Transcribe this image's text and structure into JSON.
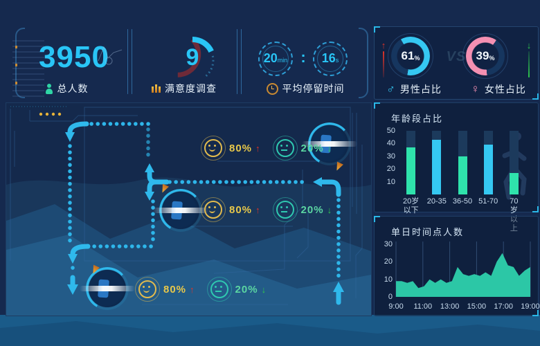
{
  "colors": {
    "accent_cyan": "#29C5F6",
    "bar_green": "#2FE3AC",
    "bar_blue": "#35C8F2",
    "area_fill": "#2CC7A6",
    "male_blue": "#35C8F2",
    "female_pink": "#F490B2",
    "up_red": "#E03428",
    "down_green": "#2FC84E",
    "gold": "#E8B339"
  },
  "kpi": {
    "total": {
      "value": "3950",
      "label": "总人数"
    },
    "satisfaction": {
      "value": "9",
      "label": "满意度调查"
    },
    "duration": {
      "minutes": "20",
      "min_unit": "min",
      "separator": ":",
      "seconds": "16",
      "sec_unit": "s",
      "label": "平均停留时间"
    },
    "gender": {
      "male_value": "61",
      "male_unit": "%",
      "male_icon": "♂",
      "male_label": "男性占比",
      "male_trend": "↑",
      "vs": "VS",
      "female_value": "39",
      "female_unit": "%",
      "female_icon": "♀",
      "female_label": "女性占比",
      "female_trend": "↓"
    }
  },
  "flow": {
    "rows": [
      {
        "happy_value": "80%",
        "happy_trend": "↑",
        "neutral_value": "20%",
        "neutral_trend": "↓"
      },
      {
        "happy_value": "80%",
        "happy_trend": "↑",
        "neutral_value": "20%",
        "neutral_trend": "↓"
      },
      {
        "happy_value": "80%",
        "happy_trend": "↑",
        "neutral_value": "20%",
        "neutral_trend": "↓"
      }
    ]
  },
  "chart_data": [
    {
      "type": "bar",
      "title": "年龄段占比",
      "categories": [
        "20岁\n以下",
        "20-35",
        "36-50",
        "51-70",
        "70岁\n以上"
      ],
      "values": [
        37,
        43,
        30,
        39,
        17
      ],
      "ylim": [
        0,
        50
      ],
      "yticks": [
        10,
        20,
        30,
        40,
        50
      ],
      "grid": false,
      "legend": "none"
    },
    {
      "type": "area",
      "title": "单日时间点人数",
      "x_labels": [
        "9:00",
        "11:00",
        "13:00",
        "15:00",
        "17:00",
        "19:00"
      ],
      "x_range": [
        "9:00",
        "19:00"
      ],
      "values": [
        9,
        9,
        8,
        9,
        5,
        6,
        10,
        8,
        10,
        8,
        9,
        17,
        13,
        12,
        13,
        12,
        14,
        12,
        20,
        25,
        18,
        17,
        12,
        15,
        17
      ],
      "ylim": [
        0,
        30
      ],
      "yticks": [
        0,
        10,
        20,
        30
      ],
      "grid": "vertical"
    }
  ]
}
